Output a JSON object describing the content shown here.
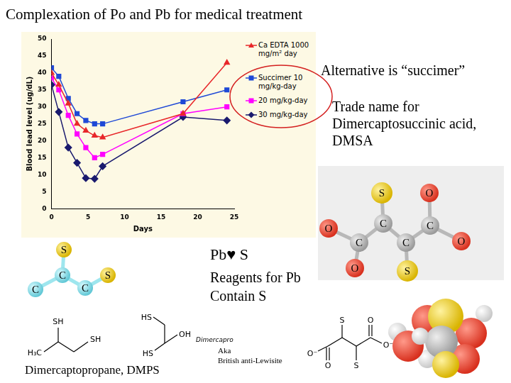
{
  "title": "Complexation of Po and Pb for medical treatment",
  "chart_data": {
    "type": "line",
    "x": [
      0,
      1,
      2.3,
      3.5,
      4.7,
      5.9,
      7,
      18,
      24
    ],
    "series": [
      {
        "name": "Ca EDTA 1000 mg/m² day",
        "color": "#e8272a",
        "marker": "triangle",
        "values": [
          40,
          36.5,
          31,
          25,
          23,
          21.5,
          21,
          28,
          43
        ]
      },
      {
        "name": "Succimer 10 mg/kg-day",
        "color": "#1f49d6",
        "marker": "square",
        "values": [
          41.5,
          39,
          32.5,
          28,
          26,
          25,
          25,
          31.5,
          35
        ]
      },
      {
        "name": "20 mg/kg-day",
        "color": "#ff00ff",
        "marker": "square",
        "values": [
          38.5,
          35,
          27.5,
          22,
          18,
          15,
          16,
          28,
          30
        ]
      },
      {
        "name": "30 mg/kg-day",
        "color": "#1a1a6e",
        "marker": "diamond",
        "values": [
          36.5,
          28.5,
          18,
          13.5,
          9,
          8.8,
          12.5,
          27,
          26
        ]
      }
    ],
    "xlabel": "Days",
    "ylabel": "Blood lead level (ug/dL)",
    "xlim": [
      0,
      25
    ],
    "xticks": [
      0,
      5,
      10,
      15,
      20,
      25
    ],
    "ylim": [
      0,
      50
    ],
    "yticks": [
      0,
      5,
      10,
      15,
      20,
      25,
      30,
      35,
      40,
      45,
      50
    ],
    "grid": false,
    "legend": "right"
  },
  "texts": {
    "alternative": "Alternative is “succimer”",
    "trade_name": "Trade name for Dimercaptosuccinic acid, DMSA",
    "pb_s": "Pb♥ S",
    "reagents": "Reagents for Pb Contain S",
    "dmps_caption": "Dimercaptopropane, DMPS",
    "aka": "Aka",
    "bal": "British anti-Lewisite"
  },
  "diagrams": {
    "dmps_model": {
      "atoms": [
        "S",
        "C",
        "C",
        "C",
        "S"
      ]
    },
    "dmsa_model": {
      "atoms": [
        "S",
        "O",
        "O",
        "C",
        "C",
        "C",
        "C",
        "O",
        "O",
        "S"
      ]
    },
    "dmps_skeletal": {
      "labels": [
        "SH",
        "SH",
        "H₃C"
      ]
    },
    "bal_skeletal": {
      "labels": [
        "HS",
        "HS",
        "OH"
      ],
      "name": "Dimercapro"
    },
    "dmsa_skeletal": {
      "labels": [
        "O⁻",
        "O",
        "S",
        "S",
        "O",
        "O⁻"
      ]
    }
  }
}
